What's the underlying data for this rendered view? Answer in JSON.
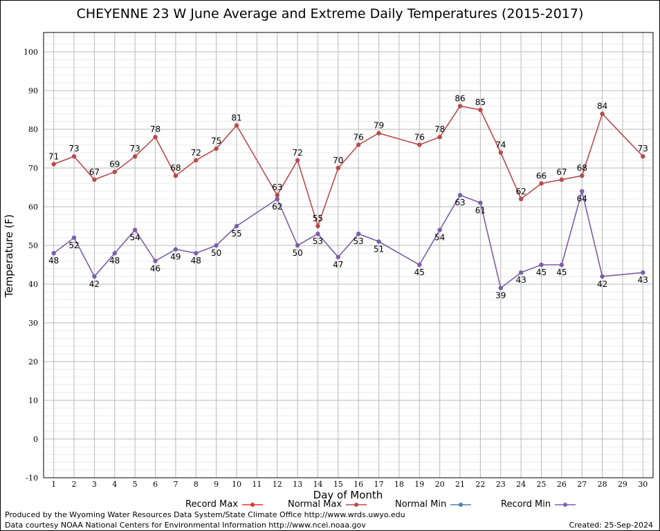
{
  "chart_data": {
    "type": "line",
    "title": "CHEYENNE 23 W June Average and Extreme Daily Temperatures (2015-2017)",
    "xlabel": "Day of Month",
    "ylabel": "Temperature (F)",
    "xlim": [
      0.5,
      30.5
    ],
    "ylim": [
      -10,
      105
    ],
    "yticks": [
      -10,
      0,
      10,
      20,
      30,
      40,
      50,
      60,
      70,
      80,
      90,
      100
    ],
    "xticks": [
      1,
      2,
      3,
      4,
      5,
      6,
      7,
      8,
      9,
      10,
      11,
      12,
      13,
      14,
      15,
      16,
      17,
      18,
      19,
      20,
      21,
      22,
      23,
      24,
      25,
      26,
      27,
      28,
      29,
      30
    ],
    "grid": true,
    "legend_placement": "bottom",
    "series": [
      {
        "name": "Record Max",
        "color": "#e8302e",
        "points": []
      },
      {
        "name": "Normal Max",
        "color": "#b84a4a",
        "points": [
          [
            1,
            71
          ],
          [
            2,
            73
          ],
          [
            3,
            67
          ],
          [
            4,
            69
          ],
          [
            5,
            73
          ],
          [
            6,
            78
          ],
          [
            7,
            68
          ],
          [
            8,
            72
          ],
          [
            9,
            75
          ],
          [
            10,
            81
          ],
          [
            12,
            63
          ],
          [
            13,
            72
          ],
          [
            14,
            55
          ],
          [
            15,
            70
          ],
          [
            16,
            76
          ],
          [
            17,
            79
          ],
          [
            19,
            76
          ],
          [
            20,
            78
          ],
          [
            21,
            86
          ],
          [
            22,
            85
          ],
          [
            23,
            74
          ],
          [
            24,
            62
          ],
          [
            25,
            66
          ],
          [
            26,
            67
          ],
          [
            27,
            68
          ],
          [
            28,
            84
          ],
          [
            30,
            73
          ]
        ],
        "labels": [
          "71",
          "73",
          "67",
          "69",
          "73",
          "78",
          "68",
          "72",
          "75",
          "81",
          "63",
          "72",
          "55",
          "70",
          "76",
          "79",
          "76",
          "78",
          "86",
          "85",
          "74",
          "62",
          "66",
          "67",
          "68",
          "84",
          "73"
        ]
      },
      {
        "name": "Normal Min",
        "color": "#4a7fb8",
        "points": []
      },
      {
        "name": "Record Min",
        "color": "#7b5ea8",
        "points": [
          [
            1,
            48
          ],
          [
            2,
            52
          ],
          [
            3,
            42
          ],
          [
            4,
            48
          ],
          [
            5,
            54
          ],
          [
            6,
            46
          ],
          [
            7,
            49
          ],
          [
            8,
            48
          ],
          [
            9,
            50
          ],
          [
            10,
            55
          ],
          [
            12,
            62
          ],
          [
            13,
            50
          ],
          [
            14,
            53
          ],
          [
            15,
            47
          ],
          [
            16,
            53
          ],
          [
            17,
            51
          ],
          [
            19,
            45
          ],
          [
            20,
            54
          ],
          [
            21,
            63
          ],
          [
            22,
            61
          ],
          [
            23,
            39
          ],
          [
            24,
            43
          ],
          [
            25,
            45
          ],
          [
            26,
            45
          ],
          [
            27,
            64
          ],
          [
            28,
            42
          ],
          [
            30,
            43
          ]
        ],
        "labels": [
          "48",
          "52",
          "42",
          "48",
          "54",
          "46",
          "49",
          "48",
          "50",
          "55",
          "62",
          "50",
          "53",
          "47",
          "53",
          "51",
          "45",
          "54",
          "63",
          "61",
          "39",
          "43",
          "45",
          "45",
          "64",
          "42",
          "43"
        ]
      }
    ]
  },
  "footer": {
    "line1": "Produced by the Wyoming Water Resources Data System/State Climate Office http://www.wrds.uwyo.edu",
    "line2": "Data courtesy NOAA National Centers for Environmental Information http://www.ncei.noaa.gov",
    "created": "Created:  25-Sep-2024"
  }
}
